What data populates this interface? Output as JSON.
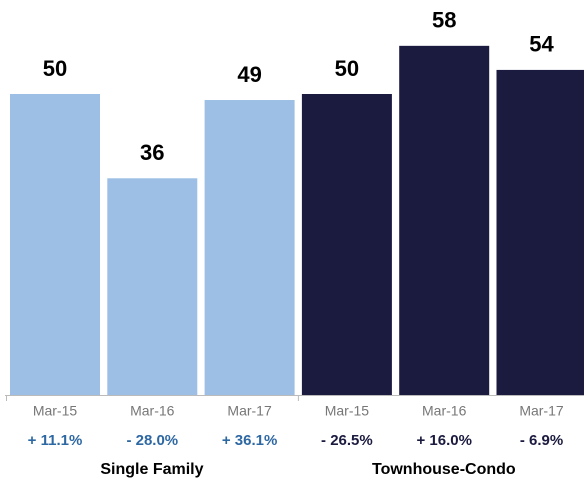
{
  "chart_data": {
    "type": "bar",
    "categories": [
      "Mar-15",
      "Mar-16",
      "Mar-17"
    ],
    "series": [
      {
        "name": "Single Family",
        "color": "#9dbfe5",
        "change_color": "#2e68a3",
        "values": [
          50,
          36,
          49
        ],
        "change_labels": [
          "+ 11.1%",
          "- 28.0%",
          "+ 36.1%"
        ]
      },
      {
        "name": "Townhouse-Condo",
        "color": "#1b1a3f",
        "change_color": "#1b1a3f",
        "values": [
          50,
          58,
          54
        ],
        "change_labels": [
          "- 26.5%",
          "+ 16.0%",
          "- 6.9%"
        ]
      }
    ]
  }
}
